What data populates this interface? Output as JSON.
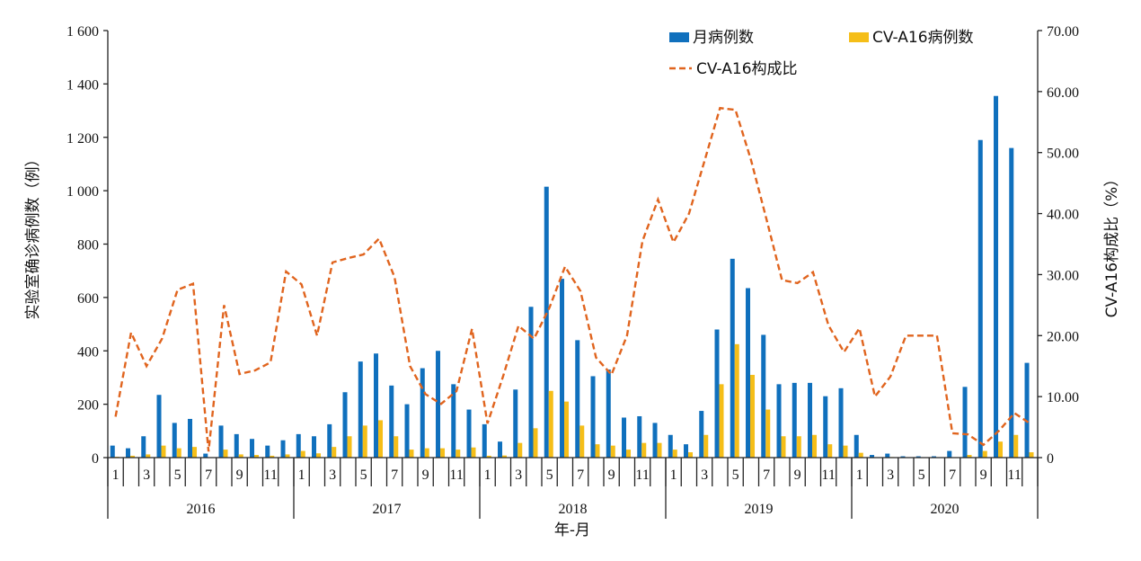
{
  "chart_data": {
    "type": "bar",
    "xlabel": "年-月",
    "ylabel_left": "实验室确诊病例数（例）",
    "ylabel_right": "CV-A16构成比（%）",
    "ylim_left": [
      0,
      1600
    ],
    "ylim_right": [
      0,
      70
    ],
    "yticks_left": [
      "0",
      "200",
      "400",
      "600",
      "800",
      "1 000",
      "1 200",
      "1 400",
      "1 600"
    ],
    "yticks_right": [
      "0",
      "10.00",
      "20.00",
      "30.00",
      "40.00",
      "50.00",
      "60.00",
      "70.00"
    ],
    "years": [
      "2016",
      "2017",
      "2018",
      "2019",
      "2020"
    ],
    "month_labels": [
      "1",
      "3",
      "5",
      "7",
      "9",
      "11"
    ],
    "grid": false,
    "legend_position": "top-right",
    "series": [
      {
        "name": "月病例数",
        "type": "bar",
        "color": "#1070bd",
        "values": [
          45,
          35,
          80,
          235,
          130,
          145,
          15,
          120,
          88,
          70,
          45,
          65,
          88,
          80,
          125,
          245,
          360,
          390,
          270,
          200,
          335,
          400,
          275,
          180,
          125,
          60,
          255,
          565,
          1015,
          670,
          440,
          305,
          330,
          150,
          155,
          130,
          85,
          50,
          175,
          480,
          745,
          635,
          460,
          275,
          280,
          280,
          230,
          260,
          85,
          10,
          15,
          5,
          5,
          5,
          25,
          265,
          1190,
          1355,
          1160,
          355
        ]
      },
      {
        "name": "CV-A16病例数",
        "type": "bar",
        "color": "#f5be18",
        "values": [
          3,
          7,
          12,
          45,
          35,
          40,
          1,
          30,
          12,
          10,
          7,
          12,
          25,
          16,
          40,
          80,
          120,
          140,
          80,
          30,
          35,
          35,
          30,
          38,
          7,
          8,
          55,
          110,
          250,
          210,
          120,
          50,
          45,
          30,
          55,
          55,
          30,
          20,
          85,
          275,
          425,
          310,
          180,
          80,
          80,
          85,
          50,
          45,
          18,
          1,
          2,
          1,
          1,
          1,
          1,
          10,
          25,
          60,
          85,
          20
        ]
      },
      {
        "name": "CV-A16构成比",
        "type": "line",
        "color": "#e0641e",
        "values": [
          6.7,
          20.5,
          15.0,
          19.5,
          27.5,
          28.5,
          1.0,
          25.0,
          13.7,
          14.3,
          15.6,
          30.5,
          28.4,
          20.0,
          32.0,
          32.7,
          33.3,
          35.9,
          29.6,
          15.0,
          10.4,
          8.8,
          10.9,
          21.1,
          5.6,
          13.3,
          21.6,
          19.5,
          24.6,
          31.3,
          27.3,
          16.4,
          13.6,
          20.0,
          35.5,
          42.3,
          35.3,
          40.0,
          48.6,
          57.3,
          57.0,
          48.8,
          39.1,
          29.1,
          28.6,
          30.4,
          21.7,
          17.3,
          21.2,
          10.0,
          13.3,
          20.0,
          20.0,
          20.0,
          4.0,
          3.8,
          2.1,
          4.4,
          7.3,
          5.6
        ]
      }
    ]
  }
}
